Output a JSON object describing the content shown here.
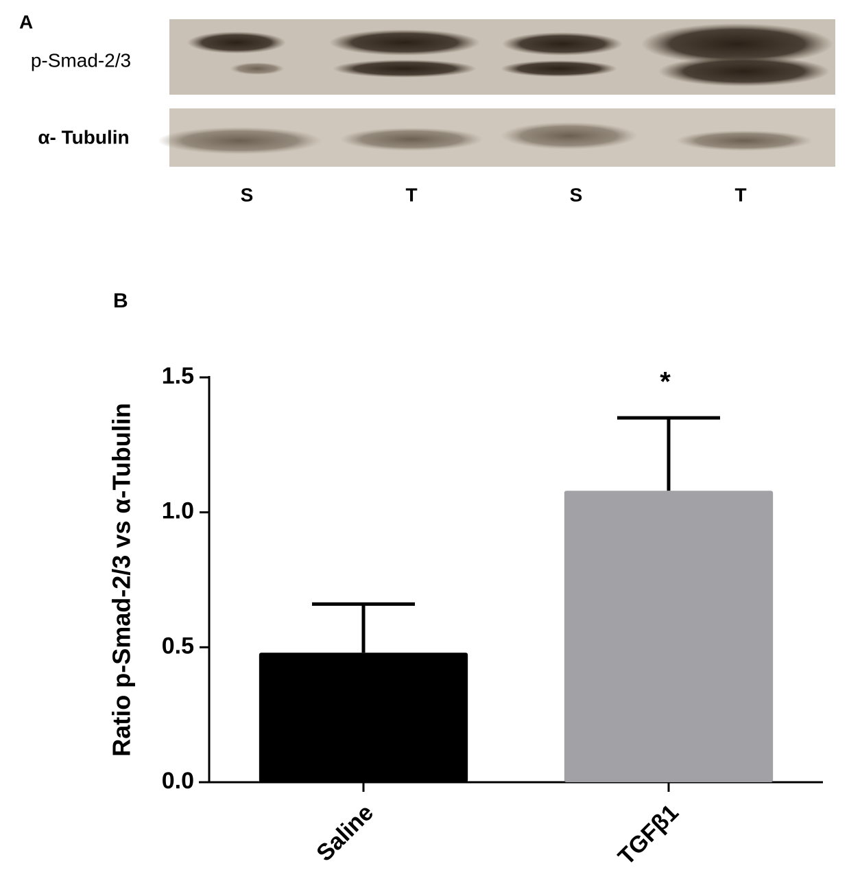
{
  "blot": {
    "panel_label": "A",
    "rows": [
      "p-Smad-2/3",
      "α- Tubulin"
    ],
    "lanes": [
      "S",
      "T",
      "S",
      "T"
    ]
  },
  "chart_data": {
    "type": "bar",
    "panel_label": "B",
    "y_label": "Ratio p-Smad-2/3 vs α-Tubulin",
    "categories": [
      "Saline",
      "TGFβ1"
    ],
    "values": [
      0.48,
      1.08
    ],
    "errors": [
      0.18,
      0.27
    ],
    "colors": [
      "#000000",
      "#a1a1a6"
    ],
    "annotations": [
      {
        "category": 1,
        "text": "*"
      }
    ],
    "ylim": [
      0,
      1.5
    ],
    "yticks": [
      {
        "value": 0,
        "label": "0.0"
      },
      0.5,
      {
        "value": 1,
        "label": "1.0"
      },
      1.5
    ]
  }
}
